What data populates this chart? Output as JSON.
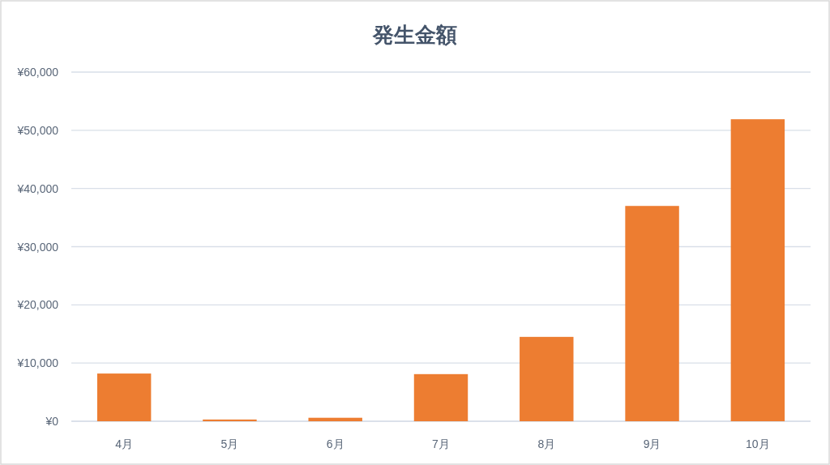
{
  "chart_data": {
    "type": "bar",
    "title": "発生金額",
    "categories": [
      "4月",
      "5月",
      "6月",
      "7月",
      "8月",
      "9月",
      "10月"
    ],
    "values": [
      8200,
      300,
      600,
      8100,
      14500,
      37000,
      51900
    ],
    "color": "#ed7d31",
    "ylim": [
      0,
      60000
    ],
    "yticks": [
      {
        "value": 0,
        "label": "¥0"
      },
      {
        "value": 10000,
        "label": "¥10,000"
      },
      {
        "value": 20000,
        "label": "¥20,000"
      },
      {
        "value": 30000,
        "label": "¥30,000"
      },
      {
        "value": 40000,
        "label": "¥40,000"
      },
      {
        "value": 50000,
        "label": "¥50,000"
      },
      {
        "value": 60000,
        "label": "¥60,000"
      }
    ],
    "grid": "y"
  }
}
